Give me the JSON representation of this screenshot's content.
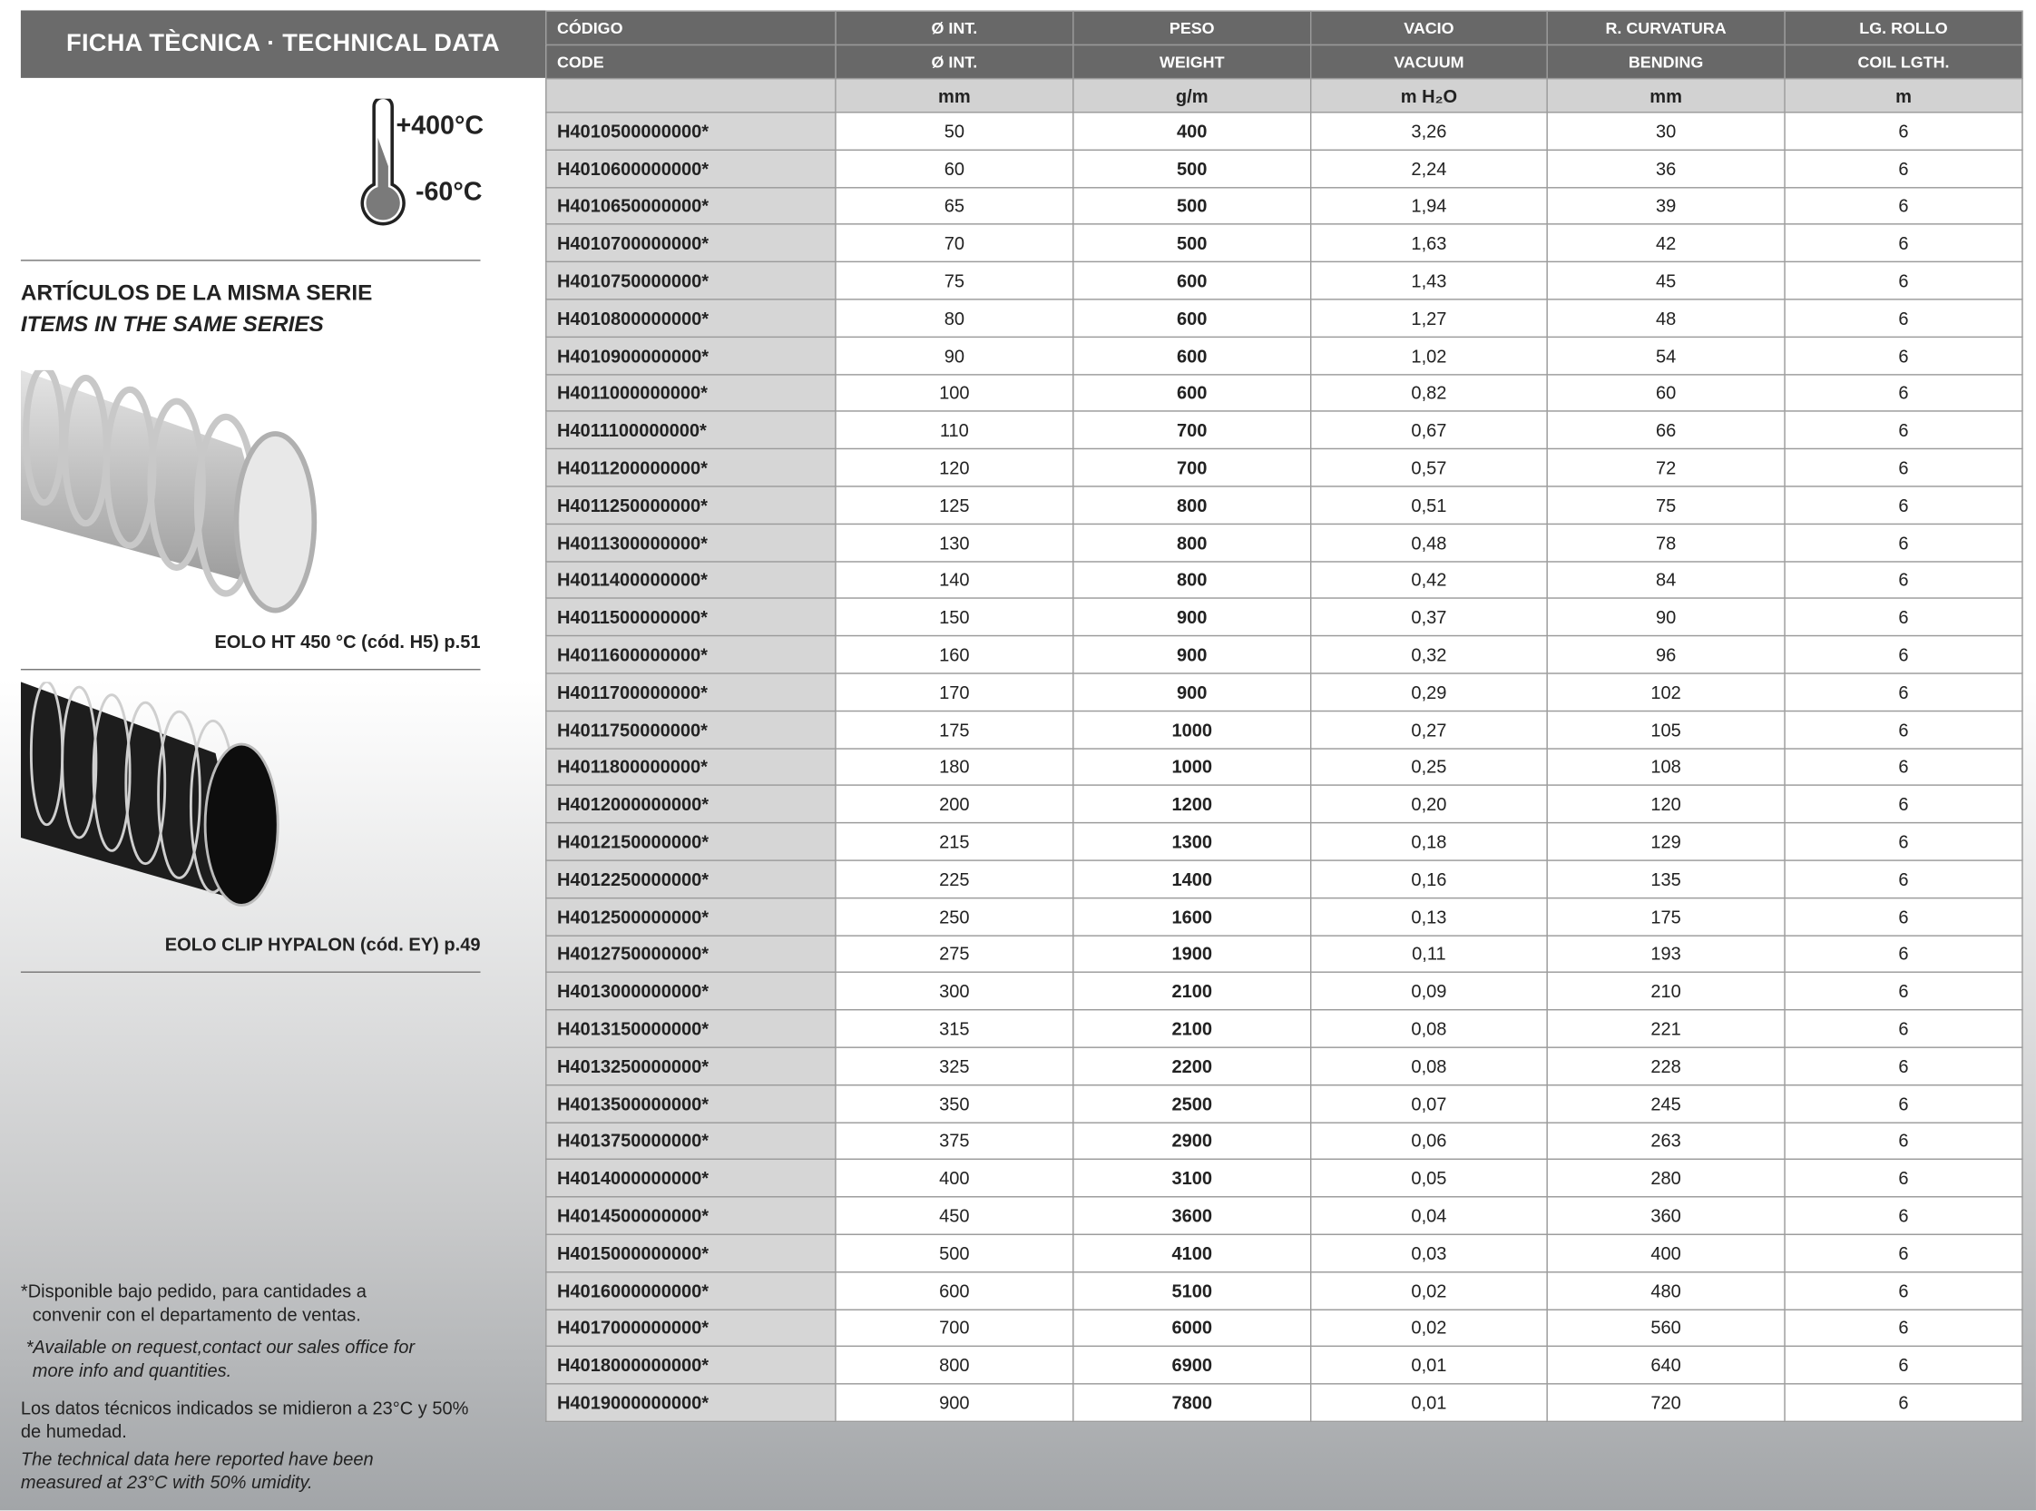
{
  "header": {
    "title": "FICHA TÈCNICA · TECHNICAL DATA"
  },
  "temperature": {
    "max": "+400°C",
    "min": "-60°C"
  },
  "series": {
    "title_es": "ARTÍCULOS DE LA MISMA SERIE",
    "title_en": "ITEMS IN THE SAME SERIES",
    "items": [
      {
        "caption": "EOLO HT 450 °C (cód. H5) p.51"
      },
      {
        "caption": "EOLO CLIP HYPALON (cód. EY) p.49"
      }
    ]
  },
  "notes": [
    "*Disponible bajo pedido, para cantidades a convenir con el departamento de ventas.",
    "*Available on request,contact our sales office for more info and quantities.",
    "Los datos técnicos indicados se midieron a 23°C y 50% de humedad.",
    "The technical data here reported have been measured at 23°C with 50% umidity."
  ],
  "table": {
    "header_es": [
      "CÓDIGO",
      "Ø INT.",
      "PESO",
      "VACIO",
      "R. CURVATURA",
      "LG. ROLLO"
    ],
    "header_en": [
      "CODE",
      "Ø INT.",
      "WEIGHT",
      "VACUUM",
      "BENDING",
      "COIL LGTH."
    ],
    "units": [
      "mm",
      "g/m",
      "m H₂O",
      "mm",
      "m"
    ],
    "rows": [
      [
        "H4010500000000*",
        "50",
        "400",
        "3,26",
        "30",
        "6"
      ],
      [
        "H4010600000000*",
        "60",
        "500",
        "2,24",
        "36",
        "6"
      ],
      [
        "H4010650000000*",
        "65",
        "500",
        "1,94",
        "39",
        "6"
      ],
      [
        "H4010700000000*",
        "70",
        "500",
        "1,63",
        "42",
        "6"
      ],
      [
        "H4010750000000*",
        "75",
        "600",
        "1,43",
        "45",
        "6"
      ],
      [
        "H4010800000000*",
        "80",
        "600",
        "1,27",
        "48",
        "6"
      ],
      [
        "H4010900000000*",
        "90",
        "600",
        "1,02",
        "54",
        "6"
      ],
      [
        "H4011000000000*",
        "100",
        "600",
        "0,82",
        "60",
        "6"
      ],
      [
        "H4011100000000*",
        "110",
        "700",
        "0,67",
        "66",
        "6"
      ],
      [
        "H4011200000000*",
        "120",
        "700",
        "0,57",
        "72",
        "6"
      ],
      [
        "H4011250000000*",
        "125",
        "800",
        "0,51",
        "75",
        "6"
      ],
      [
        "H4011300000000*",
        "130",
        "800",
        "0,48",
        "78",
        "6"
      ],
      [
        "H4011400000000*",
        "140",
        "800",
        "0,42",
        "84",
        "6"
      ],
      [
        "H4011500000000*",
        "150",
        "900",
        "0,37",
        "90",
        "6"
      ],
      [
        "H4011600000000*",
        "160",
        "900",
        "0,32",
        "96",
        "6"
      ],
      [
        "H4011700000000*",
        "170",
        "900",
        "0,29",
        "102",
        "6"
      ],
      [
        "H4011750000000*",
        "175",
        "1000",
        "0,27",
        "105",
        "6"
      ],
      [
        "H4011800000000*",
        "180",
        "1000",
        "0,25",
        "108",
        "6"
      ],
      [
        "H4012000000000*",
        "200",
        "1200",
        "0,20",
        "120",
        "6"
      ],
      [
        "H4012150000000*",
        "215",
        "1300",
        "0,18",
        "129",
        "6"
      ],
      [
        "H4012250000000*",
        "225",
        "1400",
        "0,16",
        "135",
        "6"
      ],
      [
        "H4012500000000*",
        "250",
        "1600",
        "0,13",
        "175",
        "6"
      ],
      [
        "H4012750000000*",
        "275",
        "1900",
        "0,11",
        "193",
        "6"
      ],
      [
        "H4013000000000*",
        "300",
        "2100",
        "0,09",
        "210",
        "6"
      ],
      [
        "H4013150000000*",
        "315",
        "2100",
        "0,08",
        "221",
        "6"
      ],
      [
        "H4013250000000*",
        "325",
        "2200",
        "0,08",
        "228",
        "6"
      ],
      [
        "H4013500000000*",
        "350",
        "2500",
        "0,07",
        "245",
        "6"
      ],
      [
        "H4013750000000*",
        "375",
        "2900",
        "0,06",
        "263",
        "6"
      ],
      [
        "H4014000000000*",
        "400",
        "3100",
        "0,05",
        "280",
        "6"
      ],
      [
        "H4014500000000*",
        "450",
        "3600",
        "0,04",
        "360",
        "6"
      ],
      [
        "H4015000000000*",
        "500",
        "4100",
        "0,03",
        "400",
        "6"
      ],
      [
        "H4016000000000*",
        "600",
        "5100",
        "0,02",
        "480",
        "6"
      ],
      [
        "H4017000000000*",
        "700",
        "6000",
        "0,02",
        "560",
        "6"
      ],
      [
        "H4018000000000*",
        "800",
        "6900",
        "0,01",
        "640",
        "6"
      ],
      [
        "H4019000000000*",
        "900",
        "7800",
        "0,01",
        "720",
        "6"
      ]
    ]
  }
}
